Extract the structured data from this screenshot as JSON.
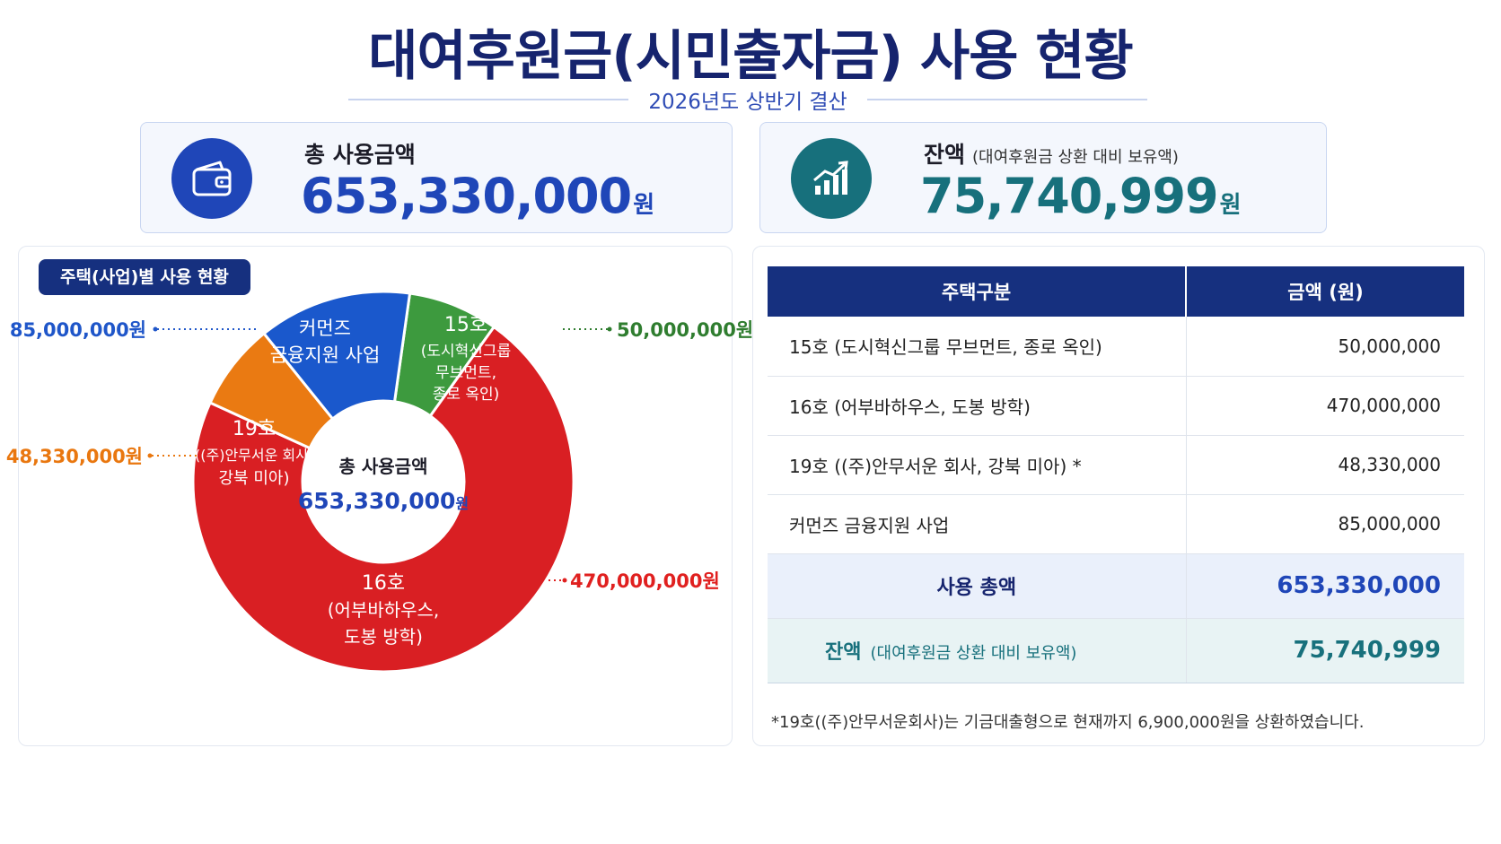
{
  "header": {
    "title": "대여후원금(시민출자금) 사용 현황",
    "subtitle": "2026년도 상반기 결산"
  },
  "kpis": {
    "total": {
      "label": "총 사용금액",
      "value": "653,330,000",
      "unit": "원",
      "icon": "wallet-icon",
      "color": "#1f46b8"
    },
    "balance": {
      "label": "잔액",
      "note": "(대여후원금 상환 대비 보유액)",
      "value": "75,740,999",
      "unit": "원",
      "icon": "growth-chart-icon",
      "color": "#17707c"
    }
  },
  "chart_panel": {
    "badge": "주택(사업)별 사용 현황"
  },
  "chart_data": {
    "type": "pie",
    "center_label": "총 사용금액",
    "center_value": "653,330,000",
    "center_unit": "원",
    "slices": [
      {
        "key": "s15",
        "lines": [
          "15호",
          "(도시혁신그룹",
          "무브먼트,",
          "종로 옥인)"
        ],
        "value": 50000000,
        "value_label": "50,000,000원",
        "color": "#3d9a3e"
      },
      {
        "key": "s16",
        "lines": [
          "16호",
          "(어부바하우스,",
          "도봉 방학)"
        ],
        "value": 470000000,
        "value_label": "470,000,000원",
        "color": "#d91f23"
      },
      {
        "key": "s19",
        "lines": [
          "19호",
          "((주)안무서운 회사,",
          "강북 미아)"
        ],
        "value": 48330000,
        "value_label": "48,330,000원",
        "color": "#ea7a12"
      },
      {
        "key": "sc",
        "lines": [
          "커먼즈",
          "금융지원 사업"
        ],
        "value": 85000000,
        "value_label": "85,000,000원",
        "color": "#1a58cc"
      }
    ]
  },
  "table": {
    "headers": [
      "주택구분",
      "금액 (원)"
    ],
    "rows": [
      {
        "name": "15호 (도시혁신그룹 무브먼트, 종로 옥인)",
        "amount": "50,000,000"
      },
      {
        "name": "16호 (어부바하우스, 도봉 방학)",
        "amount": "470,000,000"
      },
      {
        "name": "19호 ((주)안무서운 회사, 강북 미아) *",
        "amount": "48,330,000"
      },
      {
        "name": "커먼즈 금융지원 사업",
        "amount": "85,000,000"
      }
    ],
    "total": {
      "label": "사용 총액",
      "amount": "653,330,000"
    },
    "remain": {
      "label": "잔액",
      "note": "(대여후원금 상환 대비 보유액)",
      "amount": "75,740,999"
    }
  },
  "footnote": "*19호((주)안무서운회사)는 기금대출형으로 현재까지 6,900,000원을 상환하였습니다."
}
